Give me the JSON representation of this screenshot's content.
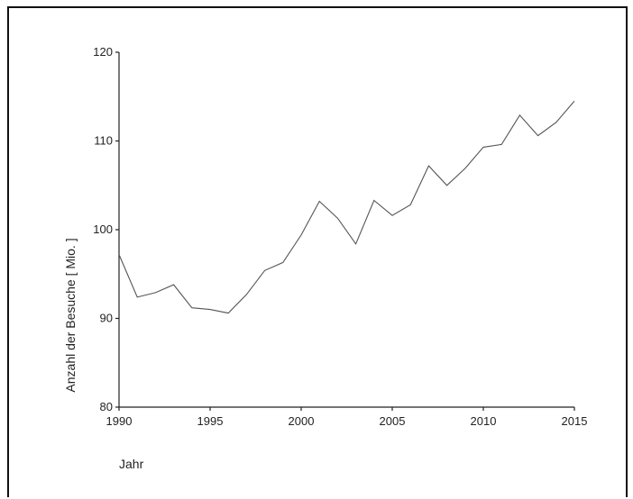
{
  "chart_data": {
    "type": "line",
    "title": "",
    "xlabel": "Jahr",
    "ylabel": "Anzahl der Besuche [ Mio. ]",
    "xlim": [
      1990,
      2015
    ],
    "ylim": [
      80,
      120
    ],
    "xticks": [
      1990,
      1995,
      2000,
      2005,
      2010,
      2015
    ],
    "yticks": [
      80,
      90,
      100,
      110,
      120
    ],
    "grid": false,
    "series": [
      {
        "color": "#555555",
        "x": [
          1990,
          1991,
          1992,
          1993,
          1994,
          1995,
          1996,
          1997,
          1998,
          1999,
          2000,
          2001,
          2002,
          2003,
          2004,
          2005,
          2006,
          2007,
          2008,
          2009,
          2010,
          2011,
          2012,
          2013,
          2014,
          2015
        ],
        "y": [
          97.2,
          92.4,
          92.9,
          93.8,
          91.2,
          91.0,
          90.6,
          92.7,
          95.4,
          96.3,
          99.4,
          103.2,
          101.3,
          98.4,
          103.3,
          101.6,
          102.8,
          107.2,
          105.0,
          106.9,
          109.3,
          109.6,
          112.9,
          110.6,
          112.1,
          114.5
        ]
      }
    ]
  }
}
